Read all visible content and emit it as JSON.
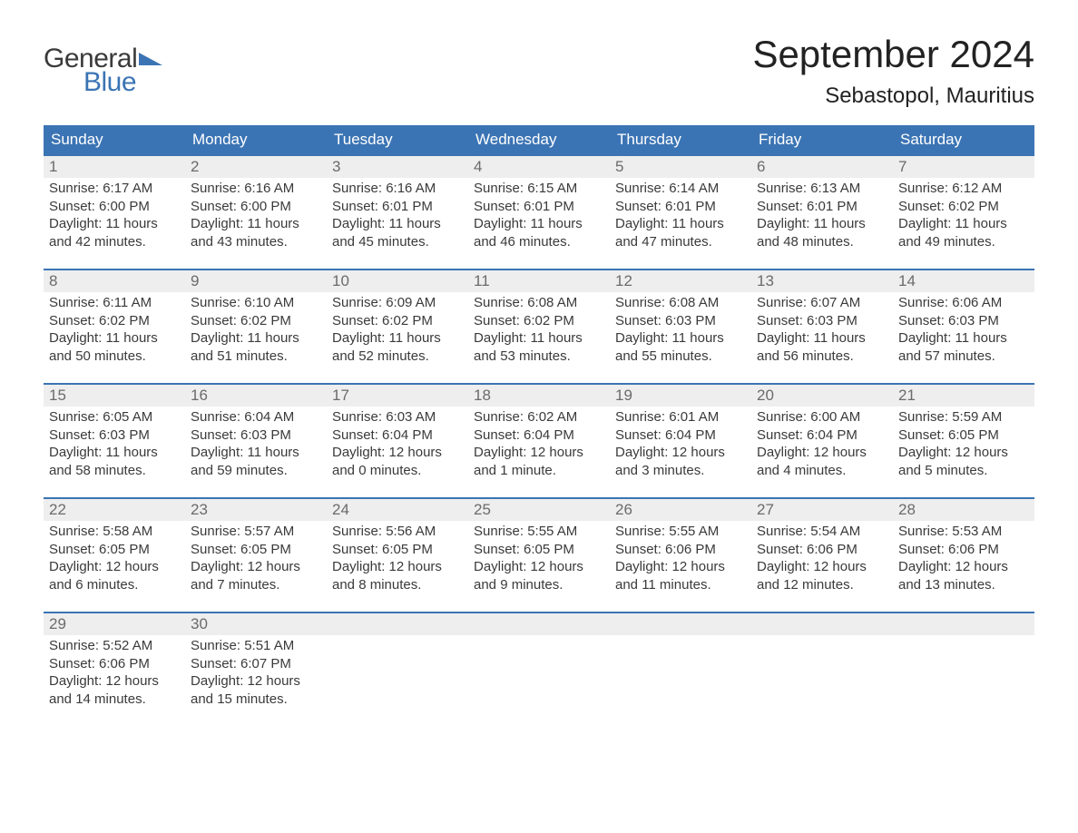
{
  "brand": {
    "top": "General",
    "bottom": "Blue",
    "top_color": "#3a3a3a",
    "bottom_color": "#3b74b4",
    "triangle_color": "#3b74b4"
  },
  "title": "September 2024",
  "location": "Sebastopol, Mauritius",
  "colors": {
    "header_bg": "#3b74b4",
    "header_text": "#ffffff",
    "week_border": "#3b74b4",
    "daynum_bg": "#eeeeee",
    "daynum_text": "#6b6b6b",
    "body_text": "#3a3a3a",
    "page_bg": "#ffffff"
  },
  "typography": {
    "title_fontsize": 42,
    "location_fontsize": 24,
    "dow_fontsize": 17,
    "daynum_fontsize": 17,
    "body_fontsize": 15
  },
  "days_of_week": [
    "Sunday",
    "Monday",
    "Tuesday",
    "Wednesday",
    "Thursday",
    "Friday",
    "Saturday"
  ],
  "weeks": [
    [
      {
        "num": "1",
        "sunrise": "Sunrise: 6:17 AM",
        "sunset": "Sunset: 6:00 PM",
        "dl1": "Daylight: 11 hours",
        "dl2": "and 42 minutes."
      },
      {
        "num": "2",
        "sunrise": "Sunrise: 6:16 AM",
        "sunset": "Sunset: 6:00 PM",
        "dl1": "Daylight: 11 hours",
        "dl2": "and 43 minutes."
      },
      {
        "num": "3",
        "sunrise": "Sunrise: 6:16 AM",
        "sunset": "Sunset: 6:01 PM",
        "dl1": "Daylight: 11 hours",
        "dl2": "and 45 minutes."
      },
      {
        "num": "4",
        "sunrise": "Sunrise: 6:15 AM",
        "sunset": "Sunset: 6:01 PM",
        "dl1": "Daylight: 11 hours",
        "dl2": "and 46 minutes."
      },
      {
        "num": "5",
        "sunrise": "Sunrise: 6:14 AM",
        "sunset": "Sunset: 6:01 PM",
        "dl1": "Daylight: 11 hours",
        "dl2": "and 47 minutes."
      },
      {
        "num": "6",
        "sunrise": "Sunrise: 6:13 AM",
        "sunset": "Sunset: 6:01 PM",
        "dl1": "Daylight: 11 hours",
        "dl2": "and 48 minutes."
      },
      {
        "num": "7",
        "sunrise": "Sunrise: 6:12 AM",
        "sunset": "Sunset: 6:02 PM",
        "dl1": "Daylight: 11 hours",
        "dl2": "and 49 minutes."
      }
    ],
    [
      {
        "num": "8",
        "sunrise": "Sunrise: 6:11 AM",
        "sunset": "Sunset: 6:02 PM",
        "dl1": "Daylight: 11 hours",
        "dl2": "and 50 minutes."
      },
      {
        "num": "9",
        "sunrise": "Sunrise: 6:10 AM",
        "sunset": "Sunset: 6:02 PM",
        "dl1": "Daylight: 11 hours",
        "dl2": "and 51 minutes."
      },
      {
        "num": "10",
        "sunrise": "Sunrise: 6:09 AM",
        "sunset": "Sunset: 6:02 PM",
        "dl1": "Daylight: 11 hours",
        "dl2": "and 52 minutes."
      },
      {
        "num": "11",
        "sunrise": "Sunrise: 6:08 AM",
        "sunset": "Sunset: 6:02 PM",
        "dl1": "Daylight: 11 hours",
        "dl2": "and 53 minutes."
      },
      {
        "num": "12",
        "sunrise": "Sunrise: 6:08 AM",
        "sunset": "Sunset: 6:03 PM",
        "dl1": "Daylight: 11 hours",
        "dl2": "and 55 minutes."
      },
      {
        "num": "13",
        "sunrise": "Sunrise: 6:07 AM",
        "sunset": "Sunset: 6:03 PM",
        "dl1": "Daylight: 11 hours",
        "dl2": "and 56 minutes."
      },
      {
        "num": "14",
        "sunrise": "Sunrise: 6:06 AM",
        "sunset": "Sunset: 6:03 PM",
        "dl1": "Daylight: 11 hours",
        "dl2": "and 57 minutes."
      }
    ],
    [
      {
        "num": "15",
        "sunrise": "Sunrise: 6:05 AM",
        "sunset": "Sunset: 6:03 PM",
        "dl1": "Daylight: 11 hours",
        "dl2": "and 58 minutes."
      },
      {
        "num": "16",
        "sunrise": "Sunrise: 6:04 AM",
        "sunset": "Sunset: 6:03 PM",
        "dl1": "Daylight: 11 hours",
        "dl2": "and 59 minutes."
      },
      {
        "num": "17",
        "sunrise": "Sunrise: 6:03 AM",
        "sunset": "Sunset: 6:04 PM",
        "dl1": "Daylight: 12 hours",
        "dl2": "and 0 minutes."
      },
      {
        "num": "18",
        "sunrise": "Sunrise: 6:02 AM",
        "sunset": "Sunset: 6:04 PM",
        "dl1": "Daylight: 12 hours",
        "dl2": "and 1 minute."
      },
      {
        "num": "19",
        "sunrise": "Sunrise: 6:01 AM",
        "sunset": "Sunset: 6:04 PM",
        "dl1": "Daylight: 12 hours",
        "dl2": "and 3 minutes."
      },
      {
        "num": "20",
        "sunrise": "Sunrise: 6:00 AM",
        "sunset": "Sunset: 6:04 PM",
        "dl1": "Daylight: 12 hours",
        "dl2": "and 4 minutes."
      },
      {
        "num": "21",
        "sunrise": "Sunrise: 5:59 AM",
        "sunset": "Sunset: 6:05 PM",
        "dl1": "Daylight: 12 hours",
        "dl2": "and 5 minutes."
      }
    ],
    [
      {
        "num": "22",
        "sunrise": "Sunrise: 5:58 AM",
        "sunset": "Sunset: 6:05 PM",
        "dl1": "Daylight: 12 hours",
        "dl2": "and 6 minutes."
      },
      {
        "num": "23",
        "sunrise": "Sunrise: 5:57 AM",
        "sunset": "Sunset: 6:05 PM",
        "dl1": "Daylight: 12 hours",
        "dl2": "and 7 minutes."
      },
      {
        "num": "24",
        "sunrise": "Sunrise: 5:56 AM",
        "sunset": "Sunset: 6:05 PM",
        "dl1": "Daylight: 12 hours",
        "dl2": "and 8 minutes."
      },
      {
        "num": "25",
        "sunrise": "Sunrise: 5:55 AM",
        "sunset": "Sunset: 6:05 PM",
        "dl1": "Daylight: 12 hours",
        "dl2": "and 9 minutes."
      },
      {
        "num": "26",
        "sunrise": "Sunrise: 5:55 AM",
        "sunset": "Sunset: 6:06 PM",
        "dl1": "Daylight: 12 hours",
        "dl2": "and 11 minutes."
      },
      {
        "num": "27",
        "sunrise": "Sunrise: 5:54 AM",
        "sunset": "Sunset: 6:06 PM",
        "dl1": "Daylight: 12 hours",
        "dl2": "and 12 minutes."
      },
      {
        "num": "28",
        "sunrise": "Sunrise: 5:53 AM",
        "sunset": "Sunset: 6:06 PM",
        "dl1": "Daylight: 12 hours",
        "dl2": "and 13 minutes."
      }
    ],
    [
      {
        "num": "29",
        "sunrise": "Sunrise: 5:52 AM",
        "sunset": "Sunset: 6:06 PM",
        "dl1": "Daylight: 12 hours",
        "dl2": "and 14 minutes."
      },
      {
        "num": "30",
        "sunrise": "Sunrise: 5:51 AM",
        "sunset": "Sunset: 6:07 PM",
        "dl1": "Daylight: 12 hours",
        "dl2": "and 15 minutes."
      },
      {
        "num": "",
        "sunrise": "",
        "sunset": "",
        "dl1": "",
        "dl2": ""
      },
      {
        "num": "",
        "sunrise": "",
        "sunset": "",
        "dl1": "",
        "dl2": ""
      },
      {
        "num": "",
        "sunrise": "",
        "sunset": "",
        "dl1": "",
        "dl2": ""
      },
      {
        "num": "",
        "sunrise": "",
        "sunset": "",
        "dl1": "",
        "dl2": ""
      },
      {
        "num": "",
        "sunrise": "",
        "sunset": "",
        "dl1": "",
        "dl2": ""
      }
    ]
  ]
}
